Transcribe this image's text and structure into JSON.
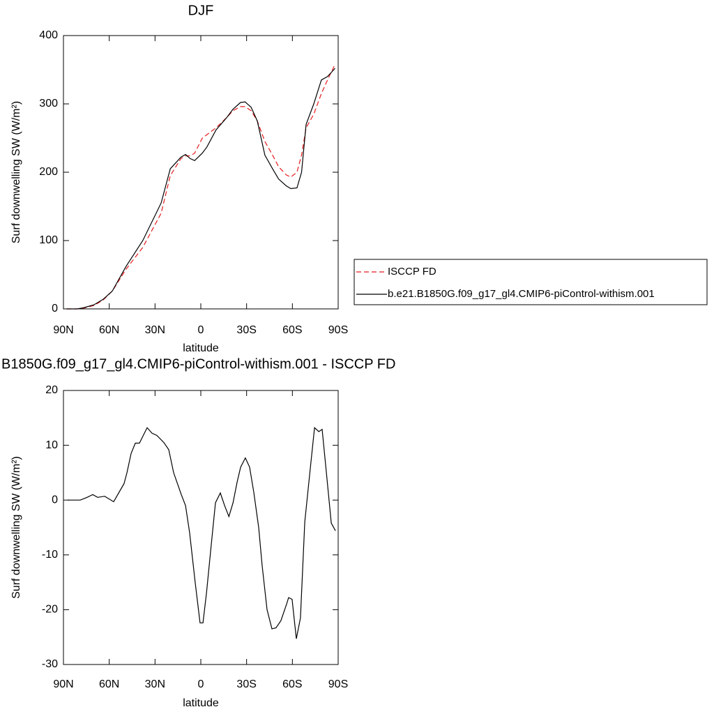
{
  "chart_data": [
    {
      "type": "line",
      "title": "DJF",
      "x_label": "latitude",
      "y_label": "Surf downwelling SW (W/m²)",
      "xlim": [
        90,
        -90
      ],
      "xticks": [
        {
          "value": 90,
          "label": "90N"
        },
        {
          "value": 60,
          "label": "60N"
        },
        {
          "value": 30,
          "label": "30N"
        },
        0,
        {
          "value": -30,
          "label": "30S"
        },
        {
          "value": -60,
          "label": "60S"
        },
        {
          "value": -90,
          "label": "90S"
        }
      ],
      "ylim": [
        0,
        400
      ],
      "yticks": [
        0,
        100,
        200,
        300,
        400
      ],
      "legend": "right",
      "x": [
        88,
        81,
        77,
        70,
        64,
        58,
        49,
        38,
        26,
        20,
        13,
        10,
        7,
        4,
        -1,
        -4,
        -10,
        -17,
        -21,
        -26,
        -29,
        -33,
        -37,
        -42,
        -47,
        -51,
        -56,
        -59,
        -63,
        -66,
        -69,
        -74,
        -79,
        -83,
        -88
      ],
      "series": [
        {
          "name": "ISCCP FD",
          "color": "#e41a1c",
          "dash": "dashed",
          "values": [
            0,
            0,
            1,
            5,
            13,
            26,
            58,
            90,
            140,
            195,
            220,
            224,
            224,
            228,
            250,
            255,
            265,
            280,
            290,
            296,
            296,
            290,
            275,
            245,
            225,
            208,
            196,
            193,
            200,
            225,
            265,
            285,
            315,
            335,
            358
          ]
        },
        {
          "name": "b.e21.B1850G.f09_g17_gl4.CMIP6-piControl-withism.001",
          "color": "#000000",
          "dash": "solid",
          "values": [
            0,
            0,
            1.5,
            6,
            14,
            26,
            62,
            100,
            155,
            205,
            222,
            226,
            220,
            217,
            228,
            237,
            262,
            280,
            292,
            302,
            303,
            295,
            275,
            225,
            205,
            190,
            180,
            176,
            177,
            200,
            270,
            300,
            335,
            340,
            352
          ]
        }
      ]
    },
    {
      "type": "line",
      "title": "B1850G.f09_g17_gl4.CMIP6-piControl-withism.001 - ISCCP FD",
      "x_label": "latitude",
      "y_label": "Surf downwelling SW (W/m²)",
      "xlim": [
        90,
        -90
      ],
      "xticks": [
        {
          "value": 90,
          "label": "90N"
        },
        {
          "value": 60,
          "label": "60N"
        },
        {
          "value": 30,
          "label": "30N"
        },
        0,
        {
          "value": -30,
          "label": "30S"
        },
        {
          "value": -60,
          "label": "60S"
        },
        {
          "value": -90,
          "label": "90S"
        }
      ],
      "ylim": [
        -30,
        20
      ],
      "yticks": [
        -30,
        -20,
        -10,
        0,
        10,
        20
      ],
      "x": [
        87.3,
        79,
        74.5,
        70.8,
        67.6,
        63,
        57.1,
        50.3,
        48.4,
        45.7,
        42.9,
        40.2,
        35.2,
        32,
        28.8,
        24.2,
        21,
        17.8,
        12.8,
        10,
        7.3,
        3.7,
        0.5,
        -1.4,
        -3.7,
        -6.9,
        -9.6,
        -12.8,
        -15.6,
        -18.4,
        -21.1,
        -23.8,
        -26.1,
        -29.2,
        -32,
        -34.7,
        -37.9,
        -40.2,
        -43.4,
        -46.6,
        -49.3,
        -52.5,
        -56.2,
        -57.5,
        -59.8,
        -62.6,
        -65.3,
        -68.1,
        -71.8,
        -74.5,
        -77.3,
        -79.5,
        -82.3,
        -85.5,
        -88.2
      ],
      "color": "#000000",
      "values": [
        0,
        0,
        0.5,
        1,
        0.5,
        0.7,
        -0.3,
        3,
        5,
        8.5,
        10.4,
        10.4,
        13.2,
        12.2,
        11.8,
        10.5,
        9.2,
        5,
        1,
        -1,
        -6,
        -15,
        -22.4,
        -22.4,
        -17,
        -8,
        -0.5,
        1.3,
        -1,
        -3,
        -0.5,
        3.3,
        6,
        7.7,
        6,
        1.4,
        -5,
        -12,
        -20,
        -23.5,
        -23.3,
        -22,
        -19,
        -17.8,
        -18.1,
        -25.3,
        -21.5,
        -4,
        6,
        13.2,
        12.5,
        12.9,
        5,
        -4.2,
        -5.6
      ]
    }
  ]
}
